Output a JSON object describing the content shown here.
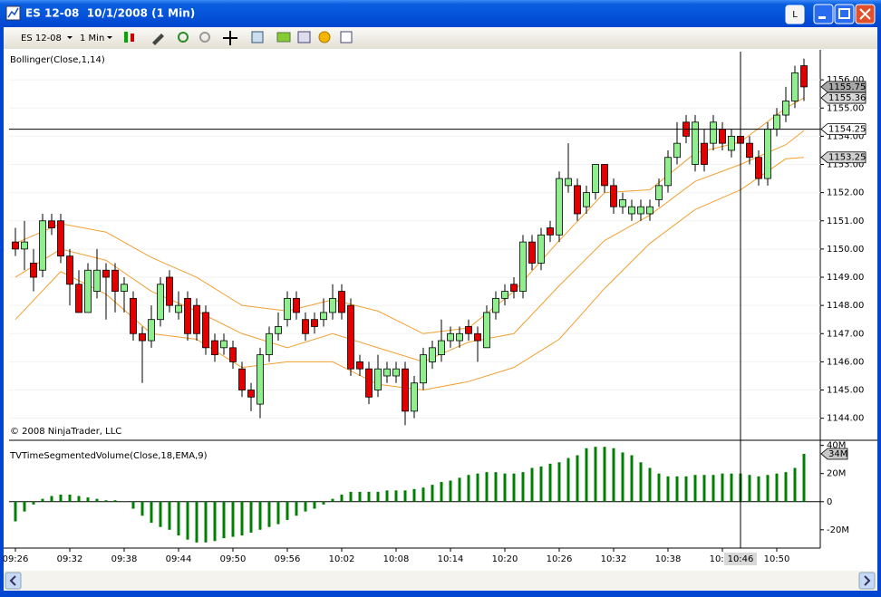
{
  "window": {
    "title": "ES 12-08  10/1/2008 (1 Min)",
    "button": "L"
  },
  "toolbar": {
    "instrument": "ES 12-08",
    "interval": "1 Min"
  },
  "chart_data": [
    {
      "type": "candlestick",
      "title": "Bollinger(Close,1,14)",
      "annotation": "© 2008 NinjaTrader, LLC",
      "up_color": "#90ee90",
      "down_color": "#e00000",
      "ohlc": [
        [
          1150.25,
          1150.75,
          1149.75,
          1150.0
        ],
        [
          1150.0,
          1151.0,
          1149.25,
          1150.25
        ],
        [
          1149.5,
          1150.0,
          1148.5,
          1149.0
        ],
        [
          1149.25,
          1151.25,
          1149.0,
          1151.0
        ],
        [
          1151.0,
          1151.25,
          1150.5,
          1150.75
        ],
        [
          1151.0,
          1151.25,
          1149.5,
          1149.75
        ],
        [
          1149.75,
          1150.0,
          1148.0,
          1148.75
        ],
        [
          1148.75,
          1149.25,
          1147.75,
          1147.75
        ],
        [
          1147.75,
          1149.5,
          1147.75,
          1149.25
        ],
        [
          1148.5,
          1150.0,
          1148.25,
          1149.25
        ],
        [
          1149.25,
          1149.5,
          1147.5,
          1149.0
        ],
        [
          1149.25,
          1149.5,
          1147.75,
          1148.5
        ],
        [
          1148.5,
          1149.0,
          1147.75,
          1148.75
        ],
        [
          1148.25,
          1148.5,
          1146.75,
          1147.0
        ],
        [
          1147.0,
          1147.25,
          1145.25,
          1146.75
        ],
        [
          1146.75,
          1148.0,
          1146.5,
          1147.5
        ],
        [
          1147.5,
          1149.0,
          1147.25,
          1148.75
        ],
        [
          1149.0,
          1149.25,
          1147.75,
          1148.0
        ],
        [
          1147.75,
          1148.5,
          1147.5,
          1148.0
        ],
        [
          1148.25,
          1148.5,
          1146.75,
          1147.0
        ],
        [
          1148.0,
          1148.25,
          1146.75,
          1147.0
        ],
        [
          1147.75,
          1148.0,
          1146.25,
          1146.5
        ],
        [
          1146.75,
          1147.0,
          1146.0,
          1146.25
        ],
        [
          1146.5,
          1147.0,
          1146.25,
          1146.75
        ],
        [
          1146.5,
          1146.75,
          1145.75,
          1146.0
        ],
        [
          1145.75,
          1146.0,
          1144.75,
          1145.0
        ],
        [
          1145.0,
          1145.25,
          1144.25,
          1144.75
        ],
        [
          1144.5,
          1146.5,
          1144.0,
          1146.25
        ],
        [
          1146.25,
          1147.25,
          1146.0,
          1147.0
        ],
        [
          1147.0,
          1147.75,
          1146.75,
          1147.25
        ],
        [
          1147.5,
          1148.5,
          1147.25,
          1148.25
        ],
        [
          1148.25,
          1148.5,
          1147.5,
          1147.75
        ],
        [
          1147.5,
          1147.75,
          1146.75,
          1147.0
        ],
        [
          1147.5,
          1147.75,
          1147.0,
          1147.25
        ],
        [
          1147.5,
          1148.25,
          1147.25,
          1147.75
        ],
        [
          1147.75,
          1148.75,
          1147.5,
          1148.25
        ],
        [
          1148.5,
          1148.75,
          1147.5,
          1147.75
        ],
        [
          1148.0,
          1148.25,
          1145.5,
          1145.75
        ],
        [
          1146.0,
          1146.25,
          1145.5,
          1145.75
        ],
        [
          1145.75,
          1146.0,
          1144.5,
          1144.75
        ],
        [
          1145.0,
          1146.25,
          1144.75,
          1145.75
        ],
        [
          1145.5,
          1146.0,
          1145.25,
          1145.75
        ],
        [
          1145.5,
          1146.0,
          1145.25,
          1145.75
        ],
        [
          1145.75,
          1146.0,
          1143.75,
          1144.25
        ],
        [
          1144.25,
          1145.5,
          1144.0,
          1145.25
        ],
        [
          1145.25,
          1146.5,
          1145.0,
          1146.25
        ],
        [
          1146.0,
          1146.75,
          1145.75,
          1146.5
        ],
        [
          1146.25,
          1147.5,
          1146.0,
          1146.75
        ],
        [
          1146.75,
          1147.25,
          1146.5,
          1147.0
        ],
        [
          1146.75,
          1147.25,
          1146.5,
          1147.0
        ],
        [
          1147.25,
          1147.5,
          1146.75,
          1147.0
        ],
        [
          1147.0,
          1147.25,
          1146.0,
          1146.75
        ],
        [
          1146.5,
          1148.0,
          1146.5,
          1147.75
        ],
        [
          1147.75,
          1148.5,
          1147.5,
          1148.25
        ],
        [
          1148.25,
          1148.75,
          1148.0,
          1148.5
        ],
        [
          1148.75,
          1149.0,
          1148.25,
          1148.5
        ],
        [
          1148.5,
          1150.5,
          1148.25,
          1150.25
        ],
        [
          1150.25,
          1150.5,
          1149.25,
          1149.5
        ],
        [
          1149.5,
          1150.75,
          1149.25,
          1150.5
        ],
        [
          1150.75,
          1151.0,
          1150.25,
          1150.5
        ],
        [
          1150.5,
          1152.75,
          1150.25,
          1152.5
        ],
        [
          1152.25,
          1153.75,
          1152.0,
          1152.5
        ],
        [
          1152.25,
          1152.5,
          1151.0,
          1151.25
        ],
        [
          1151.5,
          1152.25,
          1151.25,
          1152.0
        ],
        [
          1152.0,
          1153.0,
          1151.75,
          1153.0
        ],
        [
          1153.0,
          1153.0,
          1152.0,
          1152.25
        ],
        [
          1152.25,
          1152.5,
          1151.25,
          1151.5
        ],
        [
          1151.5,
          1152.0,
          1151.25,
          1151.75
        ],
        [
          1151.25,
          1151.75,
          1151.0,
          1151.5
        ],
        [
          1151.25,
          1151.75,
          1151.0,
          1151.5
        ],
        [
          1151.25,
          1151.75,
          1151.0,
          1151.5
        ],
        [
          1151.75,
          1152.5,
          1151.5,
          1152.25
        ],
        [
          1152.25,
          1153.5,
          1152.0,
          1153.25
        ],
        [
          1153.25,
          1154.5,
          1153.0,
          1153.75
        ],
        [
          1154.5,
          1154.75,
          1153.75,
          1154.0
        ],
        [
          1153.0,
          1154.75,
          1152.75,
          1154.5
        ],
        [
          1153.75,
          1154.25,
          1152.75,
          1153.0
        ],
        [
          1153.75,
          1154.75,
          1153.5,
          1154.5
        ],
        [
          1154.25,
          1154.5,
          1153.5,
          1153.75
        ],
        [
          1153.5,
          1154.25,
          1153.25,
          1154.0
        ],
        [
          1154.0,
          1154.25,
          1153.5,
          1153.75
        ],
        [
          1153.75,
          1154.0,
          1153.0,
          1153.25
        ],
        [
          1153.25,
          1153.5,
          1152.25,
          1152.5
        ],
        [
          1152.5,
          1154.5,
          1152.25,
          1154.25
        ],
        [
          1154.25,
          1155.0,
          1154.0,
          1154.75
        ],
        [
          1154.75,
          1155.75,
          1154.5,
          1155.25
        ],
        [
          1155.25,
          1156.5,
          1155.0,
          1156.25
        ],
        [
          1156.5,
          1156.75,
          1155.25,
          1155.75
        ]
      ],
      "series": [
        {
          "color": "#f0a030",
          "x": [
            0,
            5,
            10,
            15,
            20,
            25,
            30,
            35,
            40,
            45,
            50,
            55,
            60,
            65,
            70,
            75,
            80,
            85,
            87
          ],
          "values": [
            1150.2,
            1150.9,
            1150.6,
            1149.7,
            1149.0,
            1148.0,
            1147.8,
            1148.2,
            1147.8,
            1147.0,
            1147.2,
            1148.5,
            1150.3,
            1152.0,
            1152.1,
            1153.4,
            1153.8,
            1155.0,
            1155.36
          ]
        },
        {
          "color": "#f0a030",
          "x": [
            0,
            5,
            10,
            15,
            20,
            25,
            30,
            35,
            40,
            45,
            50,
            55,
            60,
            65,
            70,
            75,
            80,
            85,
            87
          ],
          "values": [
            1149.0,
            1150.0,
            1149.6,
            1148.5,
            1147.8,
            1147.0,
            1146.5,
            1147.0,
            1146.5,
            1146.0,
            1146.7,
            1147.0,
            1148.7,
            1150.3,
            1151.2,
            1152.4,
            1153.0,
            1153.7,
            1154.2
          ]
        },
        {
          "color": "#f0a030",
          "x": [
            0,
            5,
            10,
            15,
            20,
            25,
            30,
            35,
            40,
            45,
            50,
            55,
            60,
            65,
            70,
            75,
            80,
            85,
            87
          ],
          "values": [
            1147.5,
            1149.2,
            1148.4,
            1147.0,
            1146.8,
            1145.8,
            1146.0,
            1146.0,
            1145.2,
            1145.0,
            1145.3,
            1145.8,
            1146.8,
            1148.6,
            1150.2,
            1151.4,
            1152.1,
            1153.2,
            1153.25
          ]
        }
      ],
      "ylim": [
        1143.25,
        1157
      ],
      "yticks": [
        {
          "value": 1144,
          "label": "1144.00"
        },
        {
          "value": 1145,
          "label": "1145.00"
        },
        {
          "value": 1146,
          "label": "1146.00"
        },
        {
          "value": 1147,
          "label": "1147.00"
        },
        {
          "value": 1148,
          "label": "1148.00"
        },
        {
          "value": 1149,
          "label": "1149.00"
        },
        {
          "value": 1150,
          "label": "1150.00"
        },
        {
          "value": 1151,
          "label": "1151.00"
        },
        {
          "value": 1152,
          "label": "1152.00"
        },
        {
          "value": 1153,
          "label": "1153.00"
        },
        {
          "value": 1154,
          "label": "1154.00"
        },
        {
          "value": 1155,
          "label": "1155.00"
        },
        {
          "value": 1156,
          "label": "1156.00"
        }
      ],
      "price_labels": [
        {
          "value": 1155.75,
          "label": "1155.75",
          "color": "#a8a8a8"
        },
        {
          "value": 1155.36,
          "label": "1155.36",
          "color": "#d8d8d8"
        },
        {
          "value": 1154.25,
          "label": "1154.25",
          "color": "#ffffff"
        },
        {
          "value": 1153.25,
          "label": "1153.25",
          "color": "#d0d0d0"
        }
      ],
      "crosshair": {
        "value": 1154.25,
        "time": "10:46"
      },
      "grid": true
    },
    {
      "type": "bar",
      "title": "TVTimeSegmentedVolume(Close,18,EMA,9)",
      "color": "#008000",
      "categories": [
        "09:26",
        null,
        null,
        null,
        null,
        null,
        "09:32",
        null,
        null,
        null,
        null,
        null,
        "09:38",
        null,
        null,
        null,
        null,
        null,
        "09:44",
        null,
        null,
        null,
        null,
        null,
        "09:50",
        null,
        null,
        null,
        null,
        null,
        "09:56",
        null,
        null,
        null,
        null,
        null,
        "10:02",
        null,
        null,
        null,
        null,
        null,
        "10:08",
        null,
        null,
        null,
        null,
        null,
        "10:14",
        null,
        null,
        null,
        null,
        null,
        "10:20",
        null,
        null,
        null,
        null,
        null,
        "10:26",
        null,
        null,
        null,
        null,
        null,
        "10:32",
        null,
        null,
        null,
        null,
        null,
        "10:38",
        null,
        null,
        null,
        null,
        null,
        "10:44",
        null,
        null,
        null,
        null,
        null,
        "10:50",
        null,
        null,
        null
      ],
      "values": [
        -14000000,
        -7000000,
        -2000000,
        2000000,
        4000000,
        5000000,
        5000000,
        4000000,
        3000000,
        2000000,
        1000000,
        1000000,
        0,
        -5000000,
        -10000000,
        -15000000,
        -18000000,
        -20000000,
        -24000000,
        -27000000,
        -29000000,
        -29000000,
        -28000000,
        -26000000,
        -25000000,
        -24000000,
        -22000000,
        -20000000,
        -18000000,
        -16000000,
        -13000000,
        -10000000,
        -7000000,
        -5000000,
        -2000000,
        2000000,
        5000000,
        7000000,
        7000000,
        7000000,
        7000000,
        8000000,
        8000000,
        8000000,
        9000000,
        10000000,
        12000000,
        14000000,
        15000000,
        17000000,
        19000000,
        20000000,
        21000000,
        21000000,
        20000000,
        20000000,
        21000000,
        24000000,
        25000000,
        27000000,
        28000000,
        31000000,
        33000000,
        38000000,
        39000000,
        39000000,
        38000000,
        35000000,
        33000000,
        28000000,
        24000000,
        20000000,
        18000000,
        18000000,
        18000000,
        19000000,
        19000000,
        19000000,
        20000000,
        20000000,
        20000000,
        19000000,
        18000000,
        19000000,
        20000000,
        21000000,
        24000000,
        34000000
      ],
      "last_label": {
        "value": 34000000,
        "label": "34M"
      },
      "ylim": [
        -33000000,
        43000000
      ],
      "yticks": [
        {
          "value": -20000000,
          "label": "-20M"
        },
        0,
        {
          "value": 20000000,
          "label": "20M"
        },
        {
          "value": 40000000,
          "label": "40M"
        }
      ]
    }
  ]
}
